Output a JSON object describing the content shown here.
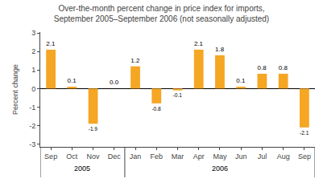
{
  "chart_data": {
    "type": "bar",
    "title": "Over-the-month percent change in price index for imports,\nSeptember 2005–September 2006 (not seasonally adjusted)",
    "ylabel": "Percent change",
    "categories": [
      "Sep",
      "Oct",
      "Nov",
      "Dec",
      "Jan",
      "Feb",
      "Mar",
      "Apr",
      "May",
      "Jun",
      "Jul",
      "Aug",
      "Sep"
    ],
    "values": [
      2.1,
      0.1,
      -1.9,
      0.0,
      1.2,
      -0.8,
      -0.1,
      2.1,
      1.8,
      0.1,
      0.8,
      0.8,
      -2.1
    ],
    "value_labels": [
      "2.1",
      "0.1",
      "-1.9",
      "0.0",
      "1.2",
      "-0.8",
      "-0.1",
      "2.1",
      "1.8",
      "0.1",
      "0.8",
      "0.8",
      "-2.1"
    ],
    "color": "#F5A623",
    "ylim": [
      -3.15,
      3.05
    ],
    "yticks": [
      -3,
      -2,
      -1,
      0,
      1,
      2,
      3
    ],
    "grid": false,
    "data_labels": true,
    "annotations": [
      {
        "text": "2005",
        "start": 0,
        "end": 3
      },
      {
        "text": "2006",
        "start": 4,
        "end": 12
      }
    ]
  }
}
